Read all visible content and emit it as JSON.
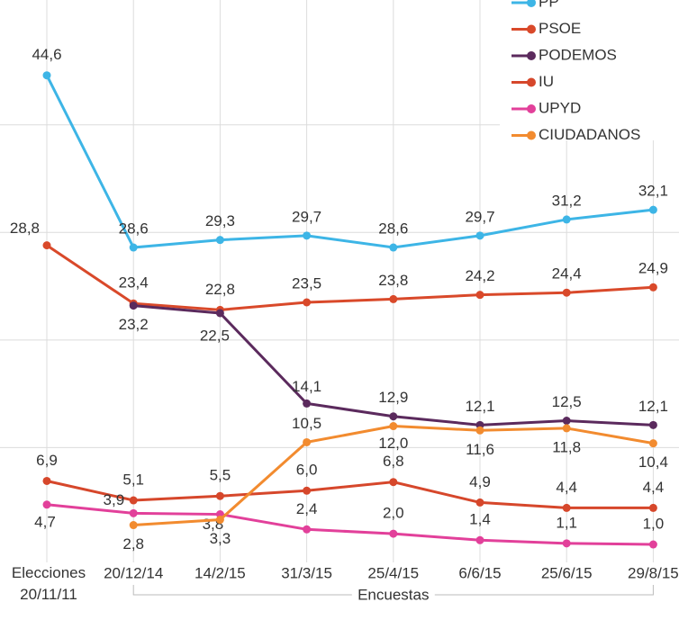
{
  "chart_data": {
    "type": "line",
    "categories": [
      "Elecciones 20/11/11",
      "20/12/14",
      "14/2/15",
      "31/3/15",
      "25/4/15",
      "6/6/15",
      "25/6/15",
      "29/8/15"
    ],
    "series": [
      {
        "name": "PP",
        "color": "#3db5e6",
        "values": [
          44.6,
          28.6,
          29.3,
          29.7,
          28.6,
          29.7,
          31.2,
          32.1
        ],
        "value_labels": [
          "44,6",
          "28,6",
          "29,3",
          "29,7",
          "28,6",
          "29,7",
          "31,2",
          "32,1"
        ]
      },
      {
        "name": "PSOE",
        "color": "#d9492a",
        "values": [
          28.8,
          23.4,
          22.8,
          23.5,
          23.8,
          24.2,
          24.4,
          24.9
        ],
        "value_labels": [
          "28,8",
          "23,4",
          "22,8",
          "23,5",
          "23,8",
          "24,2",
          "24,4",
          "24,9"
        ]
      },
      {
        "name": "PODEMOS",
        "color": "#5b2a5d",
        "values": [
          null,
          23.2,
          22.5,
          14.1,
          12.9,
          12.1,
          12.5,
          12.1
        ],
        "value_labels": [
          null,
          "23,2",
          "22,5",
          "14,1",
          "12,9",
          "12,1",
          "12,5",
          "12,1"
        ]
      },
      {
        "name": "IU",
        "color": "#d6472b",
        "values": [
          6.9,
          5.1,
          5.5,
          6.0,
          6.8,
          4.9,
          4.4,
          4.4
        ],
        "value_labels": [
          "6,9",
          "5,1",
          "5,5",
          "6,0",
          "6,8",
          "4,9",
          "4,4",
          "4,4"
        ]
      },
      {
        "name": "UPYD",
        "color": "#e2409a",
        "values": [
          4.7,
          3.9,
          3.8,
          2.4,
          2.0,
          1.4,
          1.1,
          1.0
        ],
        "value_labels": [
          "4,7",
          "3,9",
          "3,8",
          "2,4",
          "2,0",
          "1,4",
          "1,1",
          "1,0"
        ]
      },
      {
        "name": "CIUDADANOS",
        "color": "#f28b2f",
        "values": [
          null,
          2.8,
          3.3,
          10.5,
          12.0,
          11.6,
          11.8,
          10.4
        ],
        "value_labels": [
          null,
          "2,8",
          "3,3",
          "10,5",
          "12,0",
          "11,6",
          "11,8",
          "10,4"
        ]
      }
    ],
    "annotation": "Encuestas",
    "ylim": [
      0,
      51.6
    ],
    "yticks": [
      10,
      20,
      30,
      40
    ],
    "grid": true,
    "legend": "upper right"
  }
}
